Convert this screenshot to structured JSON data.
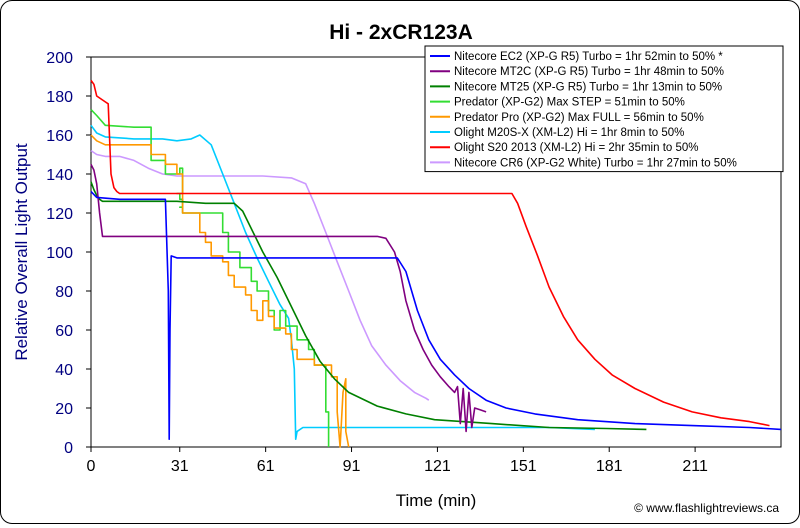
{
  "chart_data": {
    "type": "line",
    "title": "Hi - 2xCR123A",
    "xlabel": "Time (min)",
    "ylabel": "Relative Overall Light Output",
    "xlim": [
      0,
      241
    ],
    "ylim": [
      0,
      200
    ],
    "x_ticks": [
      0,
      31,
      61,
      91,
      121,
      151,
      181,
      211
    ],
    "y_ticks": [
      0,
      20,
      40,
      60,
      80,
      100,
      120,
      140,
      160,
      180,
      200
    ],
    "grid": false,
    "legend_position": "top-right",
    "series": [
      {
        "name": "Nitecore EC2 (XP-G R5) Turbo = 1hr 52min to 50% *",
        "color": "#0000ff",
        "points": [
          [
            0,
            131
          ],
          [
            2,
            128
          ],
          [
            10,
            127
          ],
          [
            20,
            127
          ],
          [
            26,
            127
          ],
          [
            27,
            80
          ],
          [
            27.3,
            4
          ],
          [
            27.6,
            60
          ],
          [
            28,
            98
          ],
          [
            30,
            97
          ],
          [
            60,
            97
          ],
          [
            100,
            97
          ],
          [
            107,
            97
          ],
          [
            110,
            90
          ],
          [
            114,
            70
          ],
          [
            118,
            55
          ],
          [
            122,
            45
          ],
          [
            127,
            37
          ],
          [
            132,
            30
          ],
          [
            138,
            24
          ],
          [
            145,
            20
          ],
          [
            155,
            17
          ],
          [
            170,
            14
          ],
          [
            190,
            12
          ],
          [
            210,
            11
          ],
          [
            230,
            10
          ],
          [
            241,
            9
          ]
        ]
      },
      {
        "name": "Nitecore MT2C (XP-G R5) Turbo = 1hr 48min to 50%",
        "color": "#800080",
        "points": [
          [
            0,
            145
          ],
          [
            1,
            142
          ],
          [
            2,
            135
          ],
          [
            3,
            120
          ],
          [
            4,
            108
          ],
          [
            10,
            108
          ],
          [
            40,
            108
          ],
          [
            70,
            108
          ],
          [
            100,
            108
          ],
          [
            103,
            107
          ],
          [
            106,
            100
          ],
          [
            108,
            90
          ],
          [
            110,
            75
          ],
          [
            113,
            60
          ],
          [
            116,
            50
          ],
          [
            119,
            42
          ],
          [
            122,
            36
          ],
          [
            125,
            31
          ],
          [
            127,
            28
          ],
          [
            128,
            31
          ],
          [
            129,
            12
          ],
          [
            130,
            30
          ],
          [
            131,
            8
          ],
          [
            132,
            28
          ],
          [
            133,
            10
          ],
          [
            134,
            20
          ],
          [
            136,
            19
          ],
          [
            138,
            18
          ]
        ]
      },
      {
        "name": "Nitecore MT25 (XP-G R5) Turbo = 1hr 13min to 50%",
        "color": "#008000",
        "points": [
          [
            0,
            136
          ],
          [
            1,
            132
          ],
          [
            2,
            129
          ],
          [
            3,
            127
          ],
          [
            4,
            126
          ],
          [
            10,
            126
          ],
          [
            30,
            126
          ],
          [
            40,
            125
          ],
          [
            50,
            125
          ],
          [
            53,
            121
          ],
          [
            56,
            112
          ],
          [
            60,
            100
          ],
          [
            65,
            87
          ],
          [
            70,
            72
          ],
          [
            75,
            57
          ],
          [
            80,
            44
          ],
          [
            85,
            35
          ],
          [
            90,
            28
          ],
          [
            100,
            21
          ],
          [
            110,
            17
          ],
          [
            120,
            14
          ],
          [
            140,
            12
          ],
          [
            160,
            10
          ],
          [
            180,
            9.5
          ],
          [
            194,
            9
          ]
        ]
      },
      {
        "name": "Predator (XP-G2) Max STEP = 51min to 50%",
        "color": "#33dd33",
        "points": [
          [
            0,
            173
          ],
          [
            2,
            170
          ],
          [
            5,
            165
          ],
          [
            15,
            164
          ],
          [
            20,
            164
          ],
          [
            21,
            164
          ],
          [
            21,
            147
          ],
          [
            26,
            147
          ],
          [
            26,
            140
          ],
          [
            30,
            140
          ],
          [
            31,
            140
          ],
          [
            31,
            143
          ],
          [
            32,
            143
          ],
          [
            32,
            130
          ],
          [
            30,
            130
          ],
          [
            31,
            130
          ],
          [
            31,
            127
          ],
          [
            32,
            127
          ],
          [
            32,
            123
          ],
          [
            31,
            123
          ],
          [
            32,
            123
          ],
          [
            32,
            120
          ],
          [
            34,
            120
          ],
          [
            35,
            120
          ],
          [
            35,
            120
          ],
          [
            36,
            120
          ],
          [
            37,
            120
          ],
          [
            38,
            120
          ],
          [
            40,
            120
          ],
          [
            46,
            120
          ],
          [
            46,
            110
          ],
          [
            48,
            110
          ],
          [
            48,
            100
          ],
          [
            52,
            100
          ],
          [
            52,
            92
          ],
          [
            56,
            92
          ],
          [
            56,
            85
          ],
          [
            58,
            85
          ],
          [
            58,
            80
          ],
          [
            62,
            80
          ],
          [
            62,
            70
          ],
          [
            64,
            70
          ],
          [
            64,
            60
          ],
          [
            66,
            60
          ],
          [
            66,
            70
          ],
          [
            68,
            70
          ],
          [
            68,
            62
          ],
          [
            72,
            62
          ],
          [
            72,
            55
          ],
          [
            76,
            55
          ],
          [
            76,
            50
          ],
          [
            78,
            50
          ],
          [
            78,
            42
          ],
          [
            82,
            42
          ],
          [
            82,
            18
          ],
          [
            83,
            18
          ],
          [
            83,
            0
          ]
        ]
      },
      {
        "name": "Predator Pro (XP-G2) Max FULL = 56min to 50%",
        "color": "#ff9900",
        "points": [
          [
            0,
            160
          ],
          [
            2,
            157
          ],
          [
            5,
            155
          ],
          [
            15,
            155
          ],
          [
            20,
            155
          ],
          [
            21,
            155
          ],
          [
            21,
            150
          ],
          [
            26,
            150
          ],
          [
            26,
            145
          ],
          [
            30,
            145
          ],
          [
            30,
            140
          ],
          [
            32,
            140
          ],
          [
            32,
            120
          ],
          [
            38,
            120
          ],
          [
            38,
            110
          ],
          [
            40,
            110
          ],
          [
            40,
            105
          ],
          [
            42,
            105
          ],
          [
            42,
            98
          ],
          [
            46,
            98
          ],
          [
            46,
            95
          ],
          [
            48,
            95
          ],
          [
            48,
            88
          ],
          [
            50,
            88
          ],
          [
            50,
            82
          ],
          [
            54,
            82
          ],
          [
            54,
            78
          ],
          [
            56,
            78
          ],
          [
            56,
            70
          ],
          [
            58,
            70
          ],
          [
            58,
            65
          ],
          [
            60,
            65
          ],
          [
            60,
            75
          ],
          [
            62,
            75
          ],
          [
            62,
            67
          ],
          [
            64,
            67
          ],
          [
            64,
            61
          ],
          [
            68,
            61
          ],
          [
            68,
            58
          ],
          [
            70,
            58
          ],
          [
            70,
            50
          ],
          [
            72,
            50
          ],
          [
            72,
            45
          ],
          [
            78,
            45
          ],
          [
            78,
            42
          ],
          [
            84,
            42
          ],
          [
            84,
            36
          ],
          [
            86,
            36
          ],
          [
            86,
            18
          ],
          [
            87,
            0
          ],
          [
            88,
            28
          ],
          [
            89,
            35
          ],
          [
            89,
            8
          ],
          [
            90,
            0
          ]
        ]
      },
      {
        "name": "Olight M20S-X (XM-L2) Hi = 1hr 8min to 50%",
        "color": "#00ccff",
        "points": [
          [
            0,
            165
          ],
          [
            2,
            161
          ],
          [
            5,
            159
          ],
          [
            15,
            158
          ],
          [
            25,
            158
          ],
          [
            30,
            157
          ],
          [
            35,
            158
          ],
          [
            38,
            160
          ],
          [
            42,
            155
          ],
          [
            46,
            140
          ],
          [
            50,
            125
          ],
          [
            54,
            110
          ],
          [
            58,
            97
          ],
          [
            62,
            85
          ],
          [
            66,
            73
          ],
          [
            69,
            66
          ],
          [
            70,
            55
          ],
          [
            71,
            40
          ],
          [
            71.5,
            4
          ],
          [
            72,
            8
          ],
          [
            74,
            10
          ],
          [
            80,
            10
          ],
          [
            100,
            10
          ],
          [
            120,
            10
          ],
          [
            140,
            10
          ],
          [
            160,
            10
          ],
          [
            176,
            9
          ]
        ]
      },
      {
        "name": "Olight S20 2013 (XM-L2) Hi = 2hr 35min to 50%",
        "color": "#ff0000",
        "points": [
          [
            0,
            188
          ],
          [
            1,
            186
          ],
          [
            2,
            180
          ],
          [
            5,
            177
          ],
          [
            6,
            176
          ],
          [
            7,
            140
          ],
          [
            8,
            133
          ],
          [
            9,
            131
          ],
          [
            10,
            130
          ],
          [
            20,
            130
          ],
          [
            40,
            130
          ],
          [
            60,
            130
          ],
          [
            80,
            130
          ],
          [
            100,
            130
          ],
          [
            120,
            130
          ],
          [
            140,
            130
          ],
          [
            147,
            130
          ],
          [
            149,
            125
          ],
          [
            152,
            113
          ],
          [
            156,
            98
          ],
          [
            160,
            82
          ],
          [
            165,
            67
          ],
          [
            170,
            55
          ],
          [
            176,
            45
          ],
          [
            182,
            37
          ],
          [
            190,
            30
          ],
          [
            200,
            23
          ],
          [
            210,
            18
          ],
          [
            220,
            15
          ],
          [
            230,
            13
          ],
          [
            237,
            11
          ]
        ]
      },
      {
        "name": "Nitecore CR6 (XP-G2 White) Turbo = 1hr 27min to 50%",
        "color": "#cc99ff",
        "points": [
          [
            0,
            152
          ],
          [
            2,
            150
          ],
          [
            5,
            149
          ],
          [
            10,
            149
          ],
          [
            15,
            147
          ],
          [
            20,
            143
          ],
          [
            25,
            140
          ],
          [
            30,
            139
          ],
          [
            40,
            139
          ],
          [
            50,
            139
          ],
          [
            60,
            139
          ],
          [
            70,
            138
          ],
          [
            75,
            135
          ],
          [
            78,
            125
          ],
          [
            82,
            110
          ],
          [
            86,
            95
          ],
          [
            90,
            80
          ],
          [
            94,
            65
          ],
          [
            98,
            52
          ],
          [
            103,
            42
          ],
          [
            108,
            34
          ],
          [
            113,
            28
          ],
          [
            117,
            25
          ],
          [
            118,
            24
          ]
        ]
      }
    ]
  },
  "credit": "© www.flashlightreviews.ca"
}
